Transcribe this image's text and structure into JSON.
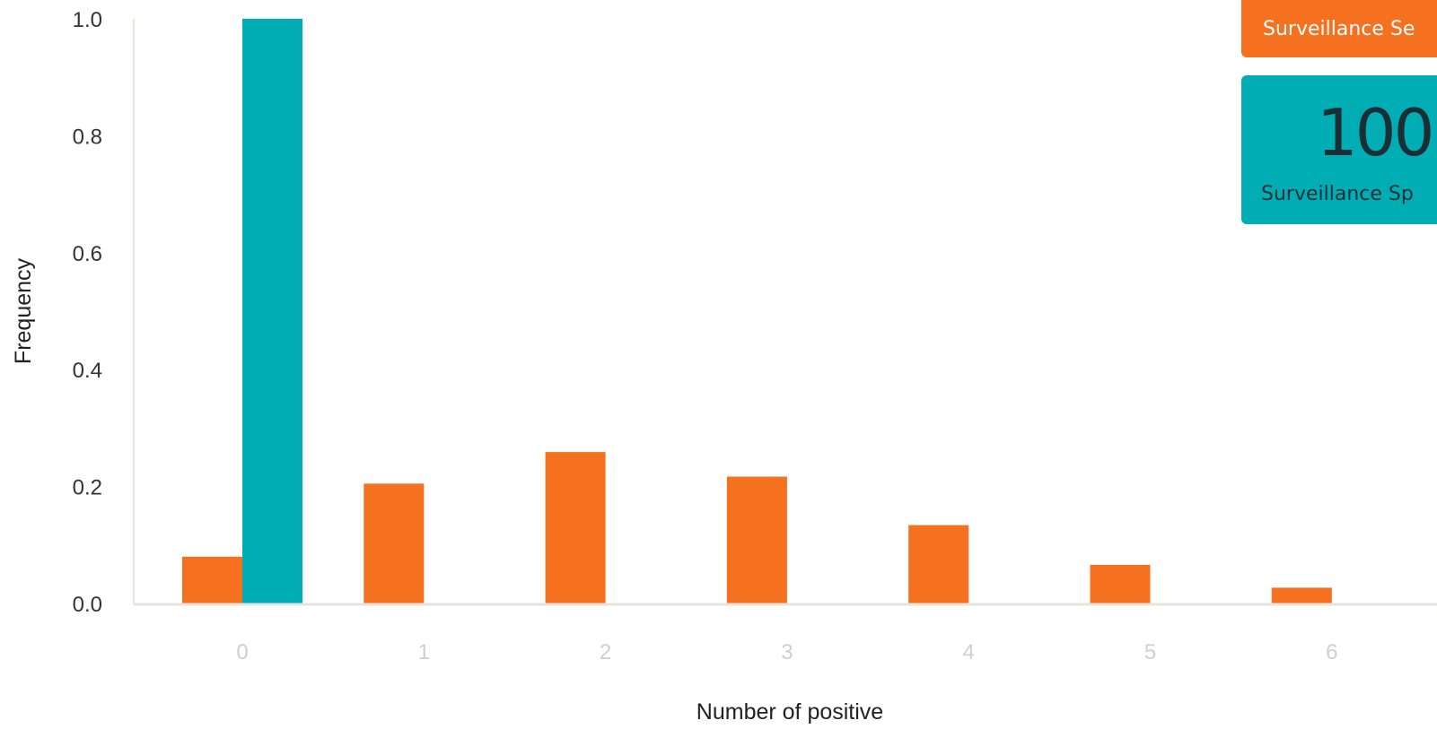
{
  "chart_data": {
    "type": "bar",
    "xlabel": "Number of positive",
    "ylabel": "Frequency",
    "ylim": [
      0,
      1
    ],
    "y_ticks": [
      "0.0",
      "0.2",
      "0.4",
      "0.6",
      "0.8",
      "1.0"
    ],
    "categories": [
      "0",
      "1",
      "2",
      "3",
      "4",
      "5",
      "6"
    ],
    "series": [
      {
        "color": "#f5701f",
        "values": [
          0.08,
          0.205,
          0.259,
          0.217,
          0.134,
          0.066,
          0.027
        ]
      },
      {
        "color": "#00adb5",
        "values": [
          1.0,
          0,
          0,
          0,
          0,
          0,
          0
        ]
      }
    ],
    "grid": false,
    "legend": "none"
  },
  "cards": {
    "orange": {
      "label": "Surveillance Se",
      "color": "#f5701f"
    },
    "teal": {
      "value": "100",
      "label": "Surveillance Sp",
      "color": "#00adb5"
    }
  }
}
